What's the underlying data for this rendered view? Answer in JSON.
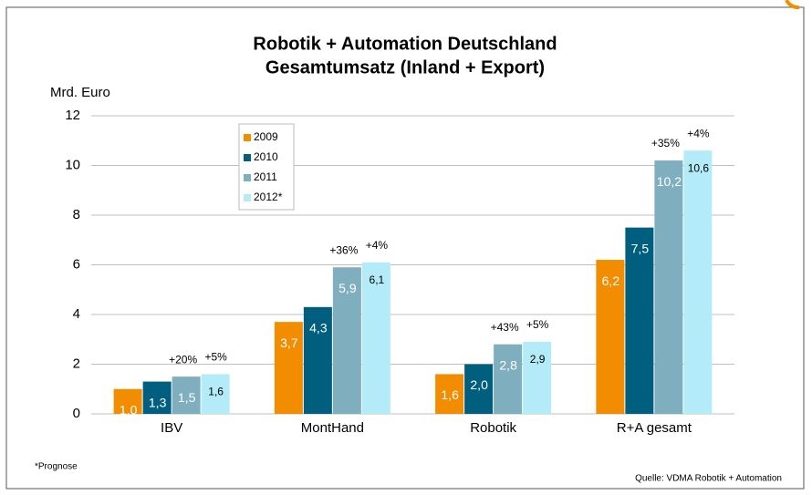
{
  "chart_data": {
    "type": "bar",
    "title": "Robotik + Automation Deutschland",
    "subtitle": "Gesamtumsatz (Inland + Export)",
    "y_label": "Mrd. Euro",
    "categories": [
      "IBV",
      "MontHand",
      "Robotik",
      "R+A gesamt"
    ],
    "series": [
      {
        "name": "2009",
        "color": "#f28c00",
        "values": [
          1.0,
          3.7,
          1.6,
          6.2
        ],
        "value_labels": [
          "1,0",
          "3,7",
          "1,6",
          "6,2"
        ]
      },
      {
        "name": "2010",
        "color": "#005f7f",
        "values": [
          1.3,
          4.3,
          2.0,
          7.5
        ],
        "value_labels": [
          "1,3",
          "4,3",
          "2,0",
          "7,5"
        ]
      },
      {
        "name": "2011",
        "color": "#7fafbf",
        "values": [
          1.5,
          5.9,
          2.8,
          10.2
        ],
        "value_labels": [
          "1,5",
          "5,9",
          "2,8",
          "10,2"
        ],
        "growth_labels": [
          "+20%",
          "+36%",
          "+43%",
          "+35%"
        ]
      },
      {
        "name": "2012*",
        "color": "#b3ecf8",
        "values": [
          1.6,
          6.1,
          2.9,
          10.6
        ],
        "value_labels": [
          "1,6",
          "6,1",
          "2,9",
          "10,6"
        ],
        "growth_labels": [
          "+5%",
          "+4%",
          "+5%",
          "+4%"
        ]
      }
    ],
    "ylim": [
      0,
      12
    ],
    "yticks": [
      0,
      2,
      4,
      6,
      8,
      10,
      12
    ],
    "grid": true,
    "legend": "upper left",
    "footnote": "*Prognose",
    "source": "Quelle: VDMA Robotik + Automation"
  }
}
